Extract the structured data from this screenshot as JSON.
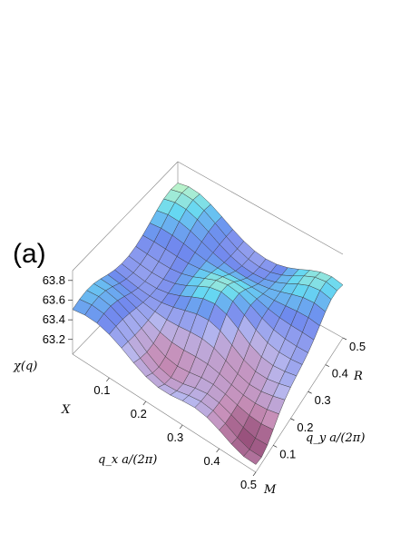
{
  "panel_label": "(a)",
  "chart_data": {
    "type": "surface3d",
    "title": "",
    "xlabel": "q_x a/(2π)",
    "ylabel": "q_y a/(2π)",
    "zlabel": "χ(q)",
    "x_ticks": [
      "0.1",
      "0.2",
      "0.3",
      "0.4",
      "0.5"
    ],
    "y_ticks": [
      "0.1",
      "0.2",
      "0.3",
      "0.4",
      "0.5"
    ],
    "z_ticks": [
      "63.2",
      "63.4",
      "63.6",
      "63.8"
    ],
    "x_range": [
      0,
      0.5
    ],
    "y_range": [
      0,
      0.5
    ],
    "corner_labels": [
      "X",
      "M",
      "R"
    ],
    "grid_size": 15,
    "colormap": [
      "#8a3f6a",
      "#c78fb8",
      "#b7b7ee",
      "#6f88ee",
      "#66d7f2",
      "#c4f6c6",
      "#eef8a8"
    ]
  }
}
